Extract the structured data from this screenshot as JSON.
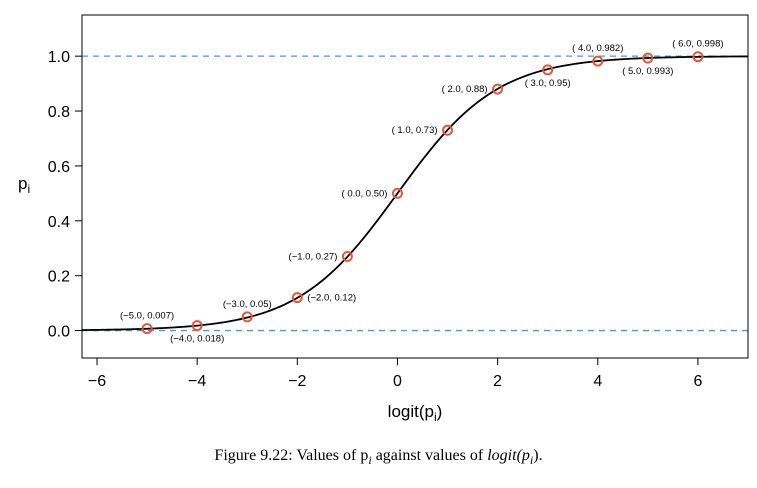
{
  "chart_data": {
    "type": "line",
    "xlabel": "logit(p",
    "xlabel_sub": "i",
    "xlabel_close": ")",
    "ylabel": "p",
    "ylabel_sub": "i",
    "xlim": [
      -6.3,
      7.0
    ],
    "ylim": [
      -0.1,
      1.15
    ],
    "xticks": [
      -6,
      -4,
      -2,
      0,
      2,
      4,
      6
    ],
    "yticks": [
      0.0,
      0.2,
      0.4,
      0.6,
      0.8,
      1.0
    ],
    "ytick_labels": [
      "0.0",
      "0.2",
      "0.4",
      "0.6",
      "0.8",
      "1.0"
    ],
    "xtick_labels": [
      "−6",
      "−4",
      "−2",
      "0",
      "2",
      "4",
      "6"
    ],
    "reference_lines": [
      0.0,
      1.0
    ],
    "curve": "logistic",
    "points": [
      {
        "x": -5,
        "y": 0.007,
        "label": "(−5.0, 0.007)",
        "pos": "above"
      },
      {
        "x": -4,
        "y": 0.018,
        "label": "(−4.0, 0.018)",
        "pos": "below"
      },
      {
        "x": -3,
        "y": 0.05,
        "label": "(−3.0, 0.05)",
        "pos": "above"
      },
      {
        "x": -2,
        "y": 0.12,
        "label": "(−2.0, 0.12)",
        "pos": "right"
      },
      {
        "x": -1,
        "y": 0.27,
        "label": "(−1.0, 0.27)",
        "pos": "left"
      },
      {
        "x": 0,
        "y": 0.5,
        "label": "( 0.0, 0.50)",
        "pos": "left"
      },
      {
        "x": 1,
        "y": 0.73,
        "label": "( 1.0, 0.73)",
        "pos": "left"
      },
      {
        "x": 2,
        "y": 0.88,
        "label": "( 2.0, 0.88)",
        "pos": "left"
      },
      {
        "x": 3,
        "y": 0.95,
        "label": "( 3.0, 0.95)",
        "pos": "below"
      },
      {
        "x": 4,
        "y": 0.982,
        "label": "( 4.0, 0.982)",
        "pos": "above"
      },
      {
        "x": 5,
        "y": 0.993,
        "label": "( 5.0, 0.993)",
        "pos": "below"
      },
      {
        "x": 6,
        "y": 0.998,
        "label": "( 6.0, 0.998)",
        "pos": "above"
      }
    ],
    "colors": {
      "curve": "#000000",
      "points": "#e8553a",
      "reference": "#4a9cc4"
    }
  },
  "caption": "Figure 9.22: Values of p",
  "caption_sub": "i",
  "caption_mid": " against values of ",
  "caption_logit": "logit",
  "caption_paren_open": "(p",
  "caption_sub2": "i",
  "caption_end": ")."
}
